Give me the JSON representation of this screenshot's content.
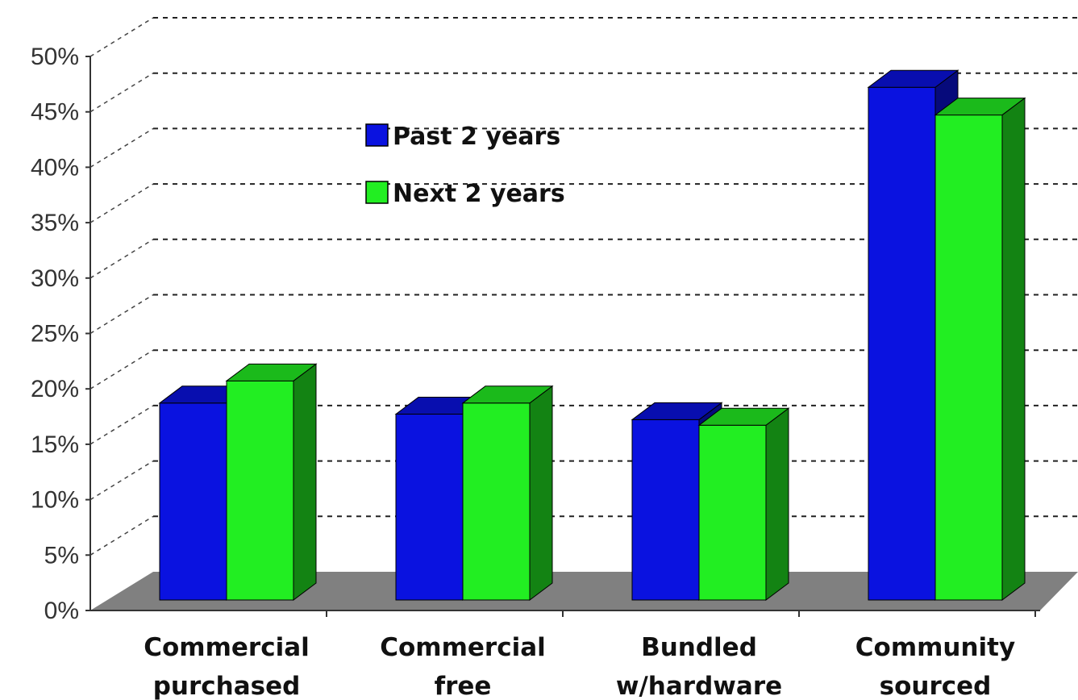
{
  "chart_data": {
    "type": "bar",
    "categories": [
      [
        "Commercial",
        "purchased"
      ],
      [
        "Commercial",
        "free"
      ],
      [
        "Bundled",
        "w/hardware"
      ],
      [
        "Community",
        "sourced"
      ]
    ],
    "series": [
      {
        "name": "Past 2 years",
        "color": "#0a12e0",
        "values": [
          18.5,
          17.5,
          17,
          47
        ]
      },
      {
        "name": "Next 2 years",
        "color": "#22ee22",
        "values": [
          20.5,
          18.5,
          16.5,
          44.5
        ]
      }
    ],
    "yticks": [
      "0%",
      "5%",
      "10%",
      "15%",
      "20%",
      "25%",
      "30%",
      "35%",
      "40%",
      "45%",
      "50%"
    ],
    "ylim": [
      0,
      50
    ],
    "grid": true,
    "legend_position": "top-left",
    "floor_color": "#808080"
  }
}
